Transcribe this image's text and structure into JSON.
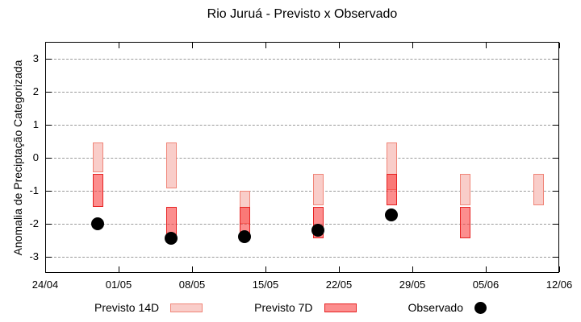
{
  "title": "Rio Juruá - Previsto x Observado",
  "ylabel": "Anomalia de Preciptação Categorizada",
  "legend": {
    "previsto14_label": "Previsto 14D",
    "previsto7_label": "Previsto 7D",
    "observado_label": "Observado"
  },
  "colors": {
    "previsto14_fill": "#f9cdc9",
    "previsto14_border": "#f08578",
    "previsto7_fill_rgba": "rgba(250,60,60,0.58)",
    "previsto7_border": "#e62222",
    "observado": "#000000",
    "grid": "#9a9a9a",
    "axis": "#000000"
  },
  "chart_data": {
    "type": "bar",
    "subtype": "floating-range-bars-with-points",
    "title": "Rio Juruá - Previsto x Observado",
    "xlabel": "",
    "ylabel": "Anomalia de Preciptação Categorizada",
    "ylim": [
      -3.5,
      3.5
    ],
    "yticks": [
      3,
      2,
      1,
      0,
      -1,
      -2,
      -3
    ],
    "x_axis_days_range": [
      0,
      49
    ],
    "xticks": [
      {
        "day": 0,
        "label": "24/04"
      },
      {
        "day": 7,
        "label": "01/05"
      },
      {
        "day": 14,
        "label": "08/05"
      },
      {
        "day": 21,
        "label": "15/05"
      },
      {
        "day": 28,
        "label": "22/05"
      },
      {
        "day": 35,
        "label": "29/05"
      },
      {
        "day": 42,
        "label": "05/06"
      },
      {
        "day": 49,
        "label": "12/06"
      }
    ],
    "grid": "horizontal-dashed",
    "legend_position": "below-center",
    "series": [
      {
        "name": "Previsto 14D",
        "style": "range-bar",
        "bars": [
          {
            "date": "29/04",
            "day": 5,
            "low": -0.45,
            "high": 0.45
          },
          {
            "date": "06/05",
            "day": 12,
            "low": -0.95,
            "high": 0.45
          },
          {
            "date": "13/05",
            "day": 19,
            "low": -2.0,
            "high": -1.0
          },
          {
            "date": "20/05",
            "day": 26,
            "low": -1.45,
            "high": -0.5
          },
          {
            "date": "27/05",
            "day": 33,
            "low": -1.0,
            "high": 0.45
          },
          {
            "date": "03/06",
            "day": 40,
            "low": -1.45,
            "high": -0.5
          },
          {
            "date": "10/06",
            "day": 47,
            "low": -1.45,
            "high": -0.5
          }
        ]
      },
      {
        "name": "Previsto 7D",
        "style": "range-bar",
        "bars": [
          {
            "date": "29/04",
            "day": 5,
            "low": -1.5,
            "high": -0.5
          },
          {
            "date": "06/05",
            "day": 12,
            "low": -2.35,
            "high": -1.5
          },
          {
            "date": "13/05",
            "day": 19,
            "low": -2.3,
            "high": -1.5
          },
          {
            "date": "20/05",
            "day": 26,
            "low": -2.45,
            "high": -1.5
          },
          {
            "date": "27/05",
            "day": 33,
            "low": -1.45,
            "high": -0.5
          },
          {
            "date": "03/06",
            "day": 40,
            "low": -2.45,
            "high": -1.5
          }
        ]
      },
      {
        "name": "Observado",
        "style": "point",
        "points": [
          {
            "date": "29/04",
            "day": 5,
            "value": -2.0
          },
          {
            "date": "06/05",
            "day": 12,
            "value": -2.45
          },
          {
            "date": "13/05",
            "day": 19,
            "value": -2.4
          },
          {
            "date": "20/05",
            "day": 26,
            "value": -2.2
          },
          {
            "date": "27/05",
            "day": 33,
            "value": -1.75
          }
        ]
      }
    ]
  }
}
